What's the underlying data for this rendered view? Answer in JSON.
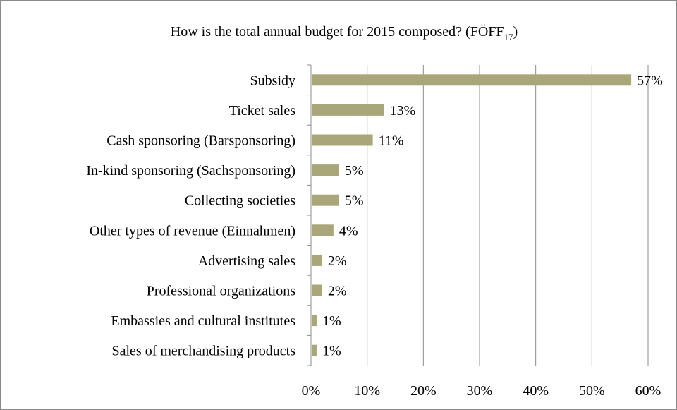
{
  "chart_data": {
    "type": "bar",
    "orientation": "horizontal",
    "title": "How is the total annual budget for 2015 composed? (FÖFF",
    "title_subscript": "17",
    "title_close": ")",
    "categories": [
      "Subsidy",
      "Ticket sales",
      "Cash sponsoring (Barsponsoring)",
      "In-kind sponsoring (Sachsponsoring)",
      "Collecting societies",
      "Other types of revenue (Einnahmen)",
      "Advertising sales",
      "Professional organizations",
      "Embassies and cultural institutes",
      "Sales of merchandising products"
    ],
    "values": [
      57,
      13,
      11,
      5,
      5,
      4,
      2,
      2,
      1,
      1
    ],
    "value_labels": [
      "57%",
      "13%",
      "11%",
      "5%",
      "5%",
      "4%",
      "2%",
      "2%",
      "1%",
      "1%"
    ],
    "x_ticks": [
      "0%",
      "10%",
      "20%",
      "30%",
      "40%",
      "50%",
      "60%"
    ],
    "xlim": [
      0,
      60
    ],
    "grid": "vertical",
    "legend": "none",
    "bar_color": "#a9a77a",
    "grid_color": "#8c8c8c"
  }
}
